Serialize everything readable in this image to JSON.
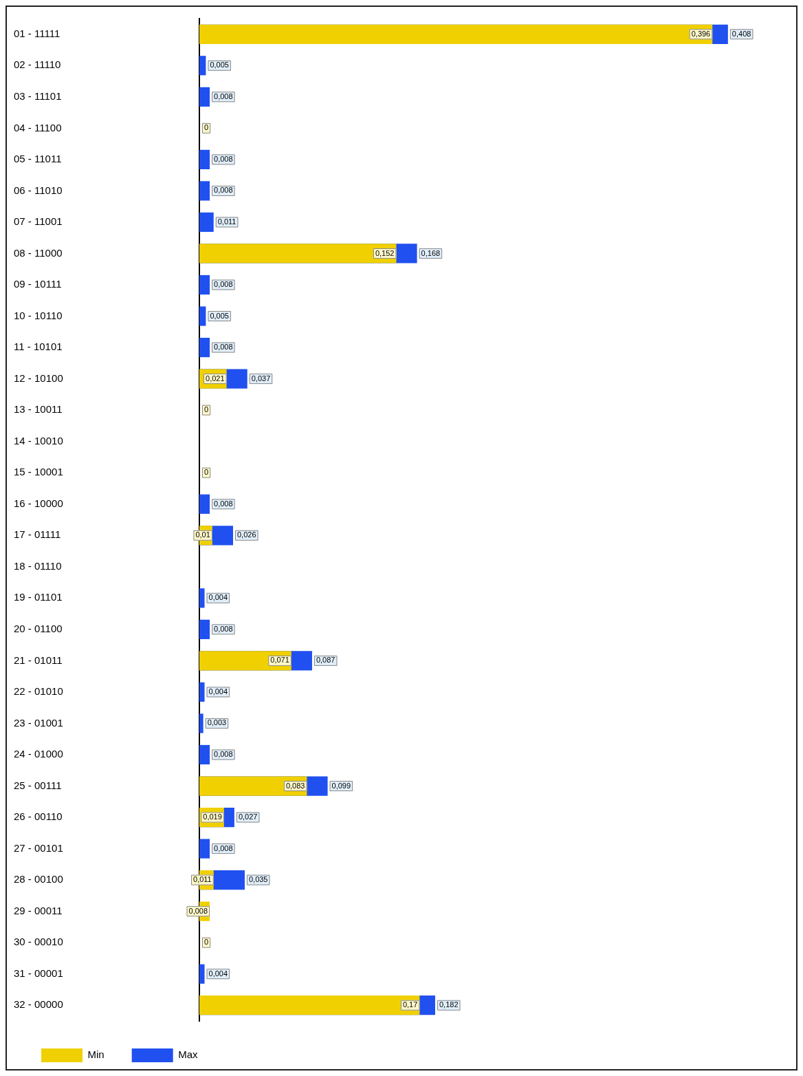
{
  "chart_data": {
    "type": "bar",
    "orientation": "horizontal",
    "categories": [
      "01 - 11111",
      "02 - 11110",
      "03 - 11101",
      "04 - 11100",
      "05 - 11011",
      "06 - 11010",
      "07 - 11001",
      "08 - 11000",
      "09 - 10111",
      "10 - 10110",
      "11 - 10101",
      "12 - 10100",
      "13 - 10011",
      "14 - 10010",
      "15 - 10001",
      "16 - 10000",
      "17 - 01111",
      "18 - 01110",
      "19 - 01101",
      "20 - 01100",
      "21 - 01011",
      "22 - 01010",
      "23 - 01001",
      "24 - 01000",
      "25 - 00111",
      "26 - 00110",
      "27 - 00101",
      "28 - 00100",
      "29 - 00011",
      "30 - 00010",
      "31 - 00001",
      "32 - 00000"
    ],
    "series": [
      {
        "name": "Min",
        "color": "#f0d000",
        "values": [
          0.396,
          null,
          null,
          0,
          null,
          null,
          null,
          0.152,
          null,
          null,
          null,
          0.021,
          0,
          null,
          0,
          null,
          0.01,
          null,
          null,
          null,
          0.071,
          null,
          null,
          null,
          0.083,
          0.019,
          null,
          0.011,
          0.008,
          0,
          null,
          0.17
        ],
        "value_labels": [
          "0,396",
          null,
          null,
          "0",
          null,
          null,
          null,
          "0,152",
          null,
          null,
          null,
          "0,021",
          "0",
          null,
          "0",
          null,
          "0,01",
          null,
          null,
          null,
          "0,071",
          null,
          null,
          null,
          "0,083",
          "0,019",
          null,
          "0,011",
          "0,008",
          "0",
          null,
          "0,17"
        ]
      },
      {
        "name": "Max",
        "color": "#2050f0",
        "values": [
          0.408,
          0.005,
          0.008,
          null,
          0.008,
          0.008,
          0.011,
          0.168,
          0.008,
          0.005,
          0.008,
          0.037,
          null,
          null,
          null,
          0.008,
          0.026,
          null,
          0.004,
          0.008,
          0.087,
          0.004,
          0.003,
          0.008,
          0.099,
          0.027,
          0.008,
          0.035,
          null,
          null,
          0.004,
          0.182
        ],
        "value_labels": [
          "0,408",
          "0,005",
          "0,008",
          null,
          "0,008",
          "0,008",
          "0,011",
          "0,168",
          "0,008",
          "0,005",
          "0,008",
          "0,037",
          null,
          null,
          null,
          "0,008",
          "0,026",
          null,
          "0,004",
          "0,008",
          "0,087",
          "0,004",
          "0,003",
          "0,008",
          "0,099",
          "0,027",
          "0,008",
          "0,035",
          null,
          null,
          "0,004",
          "0,182"
        ]
      }
    ],
    "tick_labels": "y",
    "grid": false,
    "legend": "bottom left"
  }
}
